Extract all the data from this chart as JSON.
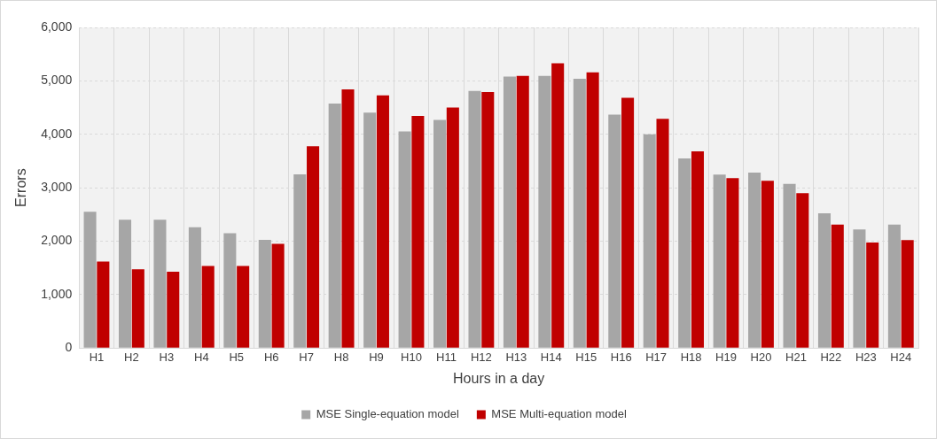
{
  "chart_data": {
    "type": "bar",
    "xlabel": "Hours in a day",
    "ylabel": "Errors",
    "categories": [
      "H1",
      "H2",
      "H3",
      "H4",
      "H5",
      "H6",
      "H7",
      "H8",
      "H9",
      "H10",
      "H11",
      "H12",
      "H13",
      "H14",
      "H15",
      "H16",
      "H17",
      "H18",
      "H19",
      "H20",
      "H21",
      "H22",
      "H23",
      "H24"
    ],
    "series": [
      {
        "name": "MSE Single-equation model",
        "color": "#a6a6a6",
        "values": [
          2550,
          2400,
          2400,
          2260,
          2150,
          2025,
          3250,
          4575,
          4405,
          4055,
          4270,
          4810,
          5080,
          5095,
          5040,
          4370,
          4000,
          3550,
          3245,
          3285,
          3070,
          2520,
          2220,
          2310
        ]
      },
      {
        "name": "MSE Multi-equation model",
        "color": "#c00000",
        "values": [
          1620,
          1475,
          1430,
          1535,
          1535,
          1950,
          3775,
          4840,
          4730,
          4345,
          4500,
          4790,
          5095,
          5330,
          5160,
          4685,
          4290,
          3680,
          3180,
          3130,
          2900,
          2310,
          1975,
          2020
        ]
      }
    ],
    "ylim": [
      0,
      6000
    ],
    "yticks": [
      {
        "value": 0,
        "label": "0"
      },
      {
        "value": 1000,
        "label": "1,000"
      },
      {
        "value": 2000,
        "label": "2,000"
      },
      {
        "value": 3000,
        "label": "3,000"
      },
      {
        "value": 4000,
        "label": "4,000"
      },
      {
        "value": 5000,
        "label": "5,000"
      },
      {
        "value": 6000,
        "label": "6,000"
      }
    ],
    "grid": true,
    "legend": "bottom"
  }
}
